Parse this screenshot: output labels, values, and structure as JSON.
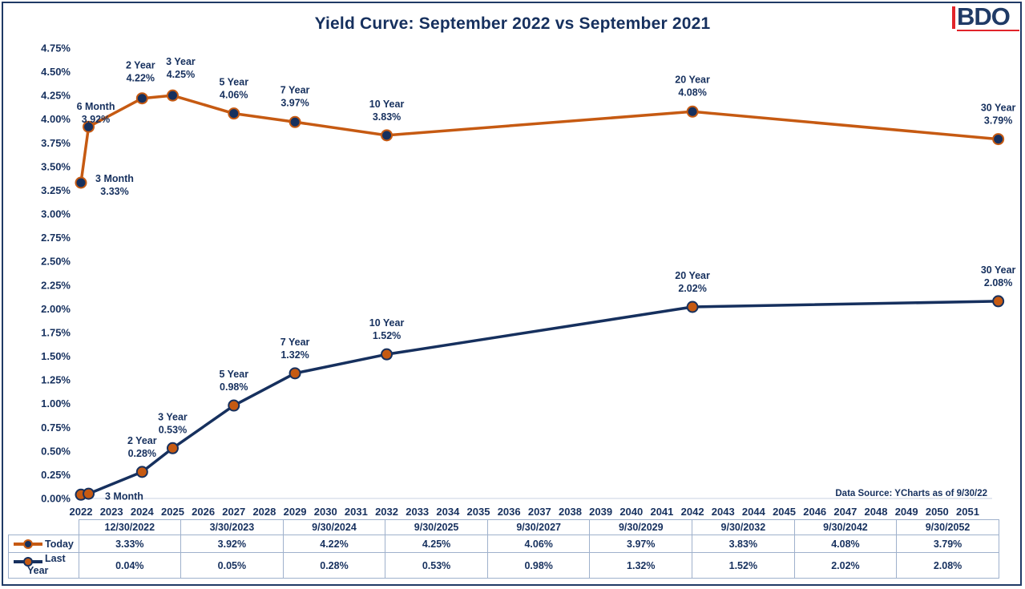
{
  "title": "Yield Curve: September 2022 vs September 2021",
  "logo": "BDO",
  "source_note": "Data Source: YCharts as of 9/30/22",
  "colors": {
    "today_line": "#c65a12",
    "today_marker": "#16305e",
    "last_line": "#16305e",
    "last_marker": "#c65a12",
    "text": "#16305e"
  },
  "chart_data": {
    "type": "line",
    "title": "Yield Curve: September 2022 vs September 2021",
    "xlabel": "",
    "ylabel": "",
    "xlim": [
      2022,
      2051.8
    ],
    "ylim": [
      0,
      4.75
    ],
    "grid": false,
    "x_ticks": [
      2022,
      2023,
      2024,
      2025,
      2026,
      2027,
      2028,
      2029,
      2030,
      2031,
      2032,
      2033,
      2034,
      2035,
      2036,
      2037,
      2038,
      2039,
      2040,
      2041,
      2042,
      2043,
      2044,
      2045,
      2046,
      2047,
      2048,
      2049,
      2050,
      2051
    ],
    "y_ticks": [
      "0.00%",
      "0.25%",
      "0.50%",
      "0.75%",
      "1.00%",
      "1.25%",
      "1.50%",
      "1.75%",
      "2.00%",
      "2.25%",
      "2.50%",
      "2.75%",
      "3.00%",
      "3.25%",
      "3.50%",
      "3.75%",
      "4.00%",
      "4.25%",
      "4.50%",
      "4.75%"
    ],
    "x": [
      2022.0,
      2022.25,
      2024.0,
      2025.0,
      2027.0,
      2029.0,
      2032.0,
      2042.0,
      2052.0
    ],
    "dates": [
      "12/30/2022",
      "3/30/2023",
      "9/30/2024",
      "9/30/2025",
      "9/30/2027",
      "9/30/2029",
      "9/30/2032",
      "9/30/2042",
      "9/30/2052"
    ],
    "series": [
      {
        "name": "Today",
        "values": [
          3.33,
          3.92,
          4.22,
          4.25,
          4.06,
          3.97,
          3.83,
          4.08,
          3.79
        ],
        "labels": [
          "3.33%",
          "3.92%",
          "4.22%",
          "4.25%",
          "4.06%",
          "3.97%",
          "3.83%",
          "4.08%",
          "3.79%"
        ],
        "point_names": [
          "3 Month",
          "6 Month",
          "2 Year",
          "3 Year",
          "5 Year",
          "7 Year",
          "10 Year",
          "20 Year",
          "30 Year"
        ],
        "point_values": [
          "3.33%",
          "3.92%",
          "4.22%",
          "4.25%",
          "4.06%",
          "3.97%",
          "3.83%",
          "4.08%",
          "3.79%"
        ]
      },
      {
        "name": "Last Year",
        "values": [
          0.04,
          0.05,
          0.28,
          0.53,
          0.98,
          1.32,
          1.52,
          2.02,
          2.08
        ],
        "labels": [
          "0.04%",
          "0.05%",
          "0.28%",
          "0.53%",
          "0.98%",
          "1.32%",
          "1.52%",
          "2.02%",
          "2.08%"
        ],
        "point_names": [
          "3 Month",
          "",
          "2 Year",
          "3 Year",
          "5 Year",
          "7 Year",
          "10 Year",
          "20 Year",
          "30 Year"
        ],
        "point_values": [
          "",
          "",
          "0.28%",
          "0.53%",
          "0.98%",
          "1.32%",
          "1.52%",
          "2.02%",
          "2.08%"
        ]
      }
    ]
  },
  "table": {
    "row_labels": [
      "Today",
      "Last",
      "Year"
    ]
  }
}
